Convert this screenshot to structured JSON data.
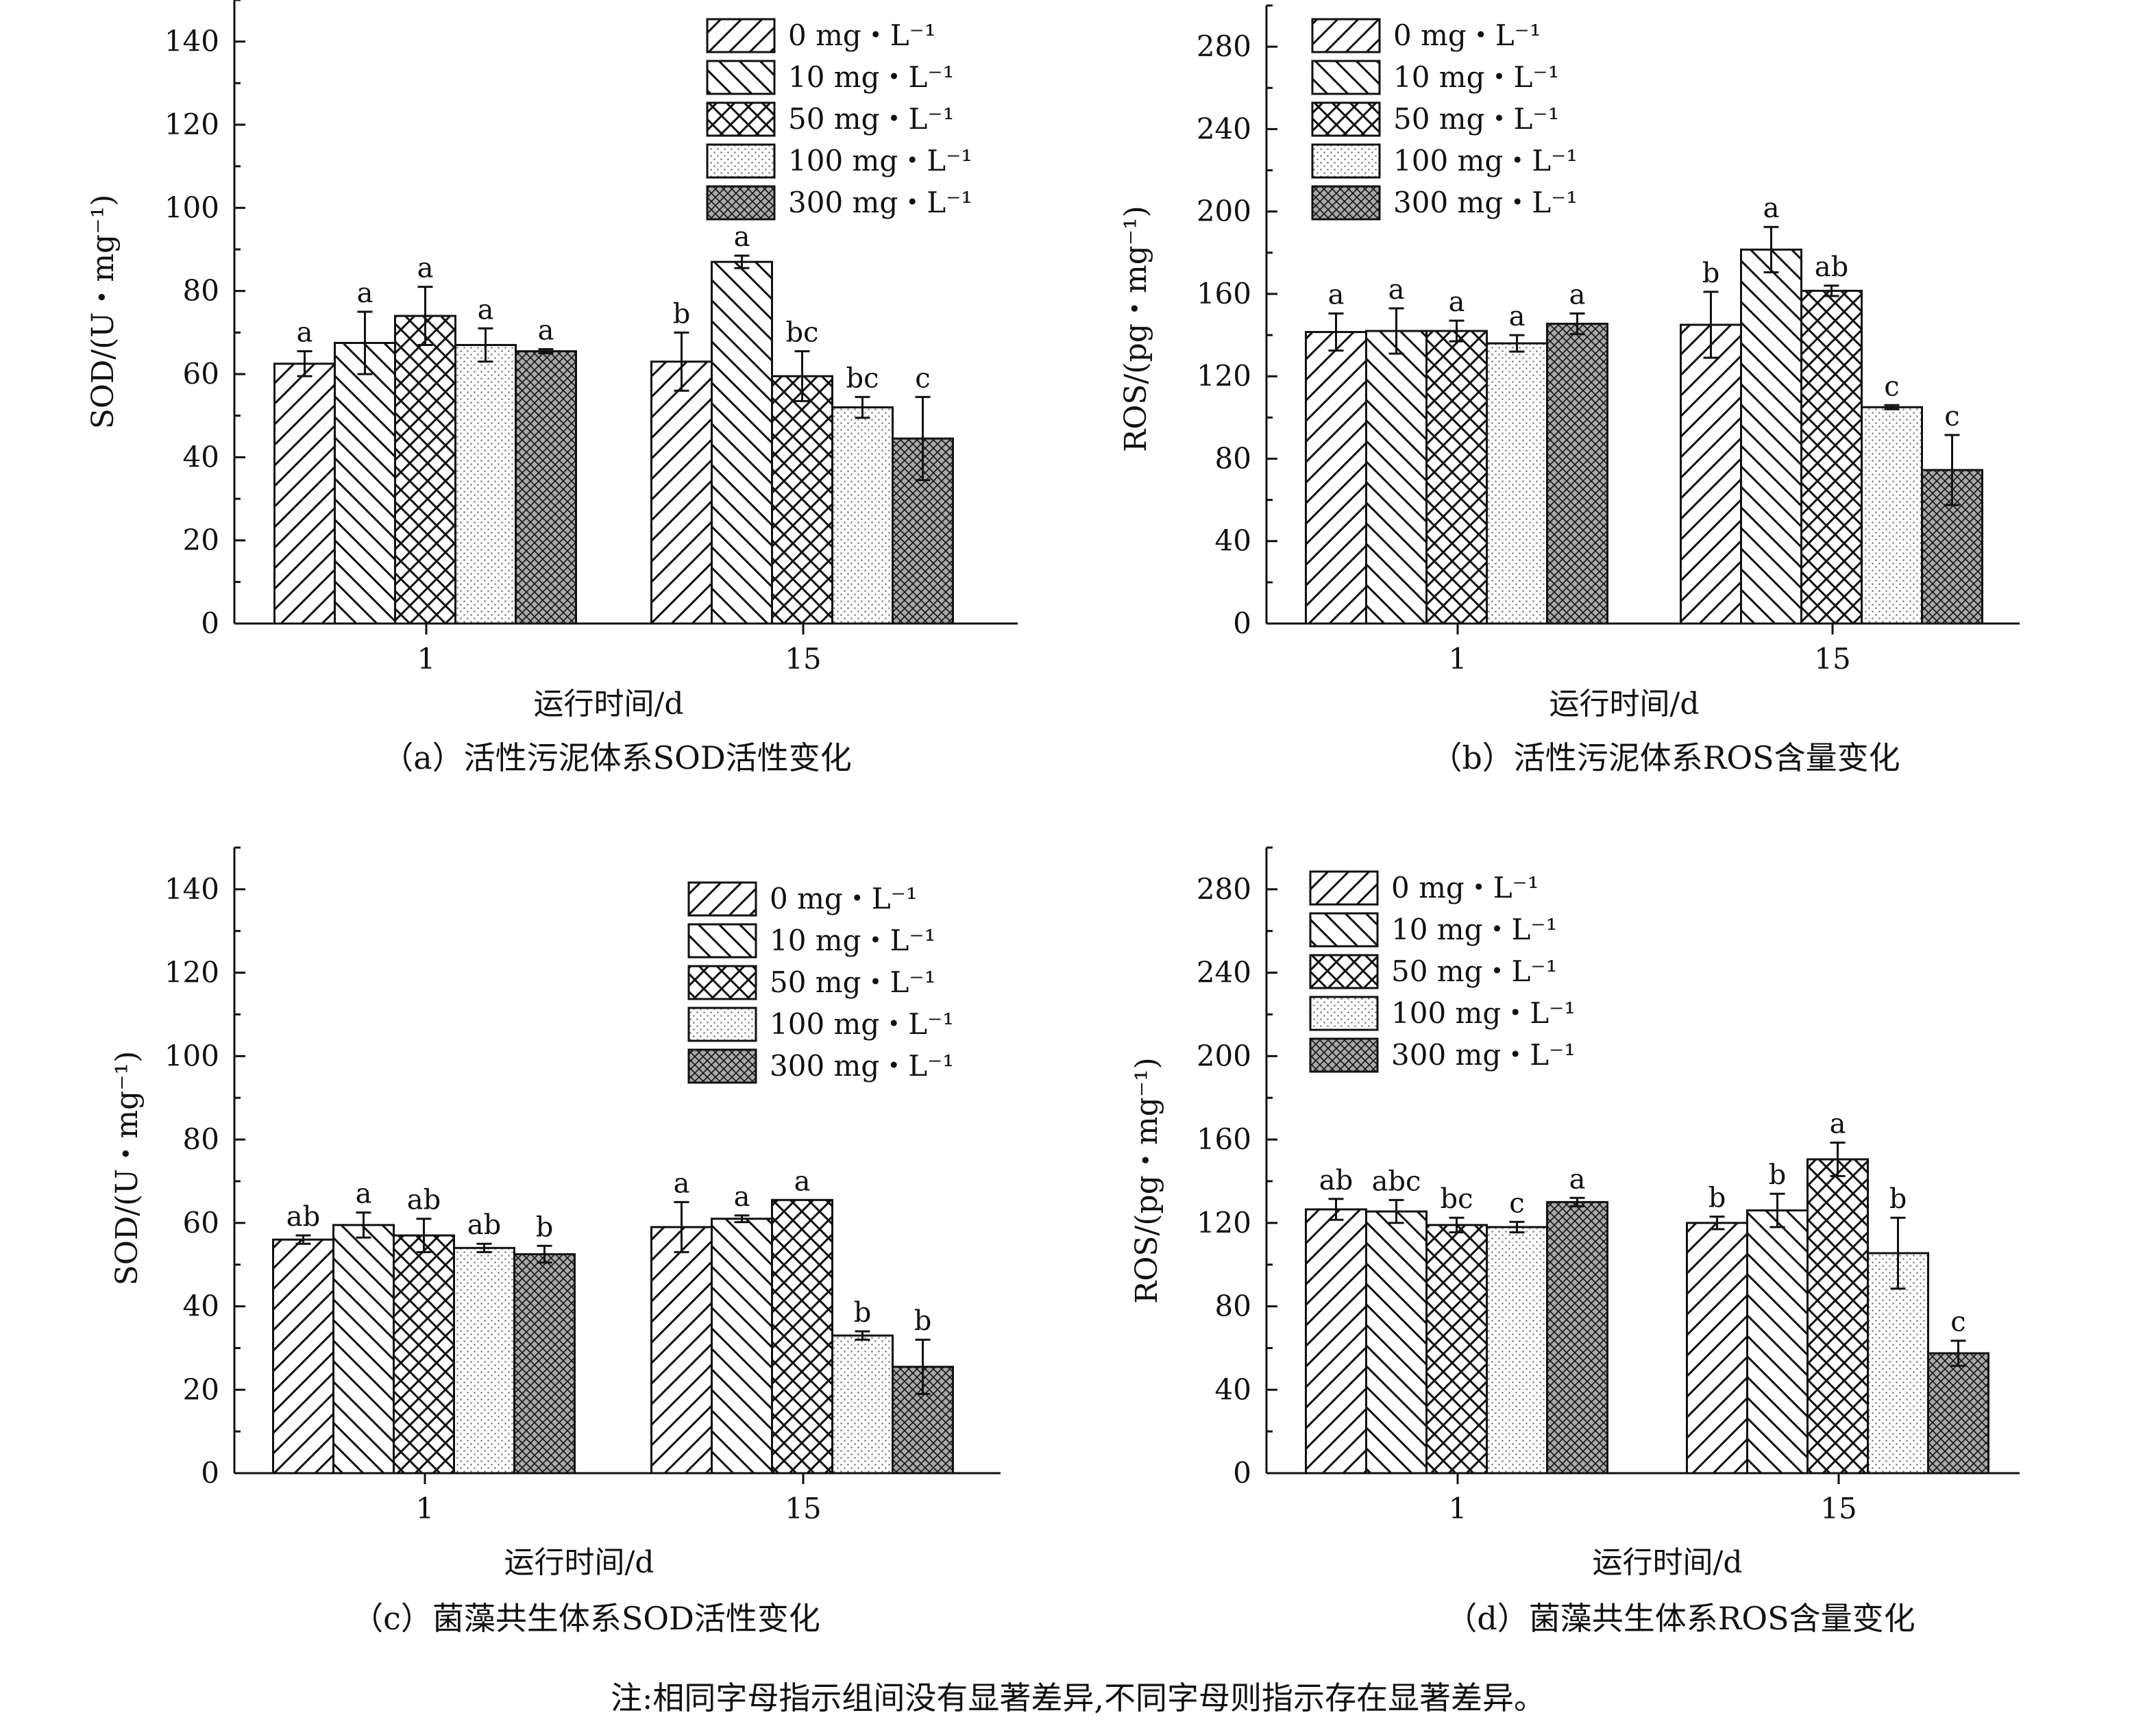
{
  "figure": {
    "note": "注:相同字母指示组间没有显著差异,不同字母则指示存在显著差异。"
  },
  "legend": {
    "items": [
      {
        "label": "0 mg・L⁻¹",
        "pattern": "diag-right"
      },
      {
        "label": "10 mg・L⁻¹",
        "pattern": "diag-left"
      },
      {
        "label": "50 mg・L⁻¹",
        "pattern": "crosshatch"
      },
      {
        "label": "100 mg・L⁻¹",
        "pattern": "dots"
      },
      {
        "label": "300 mg・L⁻¹",
        "pattern": "fine-crosshatch"
      }
    ]
  },
  "colors": {
    "ink": "#111111",
    "background": "#ffffff",
    "dots": "#7a7a7a",
    "fine_hatch_fill": "#a8a8a8"
  },
  "chart_data": [
    {
      "id": "a",
      "type": "bar",
      "caption": "（a）活性污泥体系SOD活性变化",
      "xlabel": "运行时间/d",
      "ylabel": "SOD/(U・mg⁻¹)",
      "categories": [
        "1",
        "15"
      ],
      "ylim": [
        0,
        150
      ],
      "yticks": [
        "0",
        "20",
        "40",
        "60",
        "80",
        "100",
        "120",
        "140"
      ],
      "grid": false,
      "legend_position": "top-right",
      "series": [
        {
          "name": "0 mg・L⁻¹",
          "values": [
            62.5,
            63
          ],
          "errors": [
            3,
            7
          ],
          "labels": [
            "a",
            "b"
          ]
        },
        {
          "name": "10 mg・L⁻¹",
          "values": [
            67.5,
            87
          ],
          "errors": [
            7.5,
            1.5
          ],
          "labels": [
            "a",
            "a"
          ]
        },
        {
          "name": "50 mg・L⁻¹",
          "values": [
            74,
            59.5
          ],
          "errors": [
            7,
            6
          ],
          "labels": [
            "a",
            "bc"
          ]
        },
        {
          "name": "100 mg・L⁻¹",
          "values": [
            67,
            52
          ],
          "errors": [
            4,
            2.5
          ],
          "labels": [
            "a",
            "bc"
          ]
        },
        {
          "name": "300 mg・L⁻¹",
          "values": [
            65.5,
            44.5
          ],
          "errors": [
            0.5,
            10
          ],
          "labels": [
            "a",
            "c"
          ]
        }
      ]
    },
    {
      "id": "b",
      "type": "bar",
      "caption": "（b）活性污泥体系ROS含量变化",
      "xlabel": "运行时间/d",
      "ylabel": "ROS/(pg・mg⁻¹)",
      "categories": [
        "1",
        "15"
      ],
      "ylim": [
        0,
        300
      ],
      "yticks": [
        "0",
        "40",
        "80",
        "120",
        "160",
        "200",
        "240",
        "280"
      ],
      "grid": false,
      "legend_position": "top-right",
      "series": [
        {
          "name": "0 mg・L⁻¹",
          "values": [
            141.5,
            145
          ],
          "errors": [
            9,
            16
          ],
          "labels": [
            "a",
            "b"
          ]
        },
        {
          "name": "10 mg・L⁻¹",
          "values": [
            142,
            181.5
          ],
          "errors": [
            11,
            11
          ],
          "labels": [
            "a",
            "a"
          ]
        },
        {
          "name": "50 mg・L⁻¹",
          "values": [
            142,
            161.5
          ],
          "errors": [
            5,
            2.5
          ],
          "labels": [
            "a",
            "ab"
          ]
        },
        {
          "name": "100 mg・L⁻¹",
          "values": [
            136,
            105
          ],
          "errors": [
            4,
            1
          ],
          "labels": [
            "a",
            "c"
          ]
        },
        {
          "name": "300 mg・L⁻¹",
          "values": [
            145.5,
            74.5
          ],
          "errors": [
            5,
            17
          ],
          "labels": [
            "a",
            "c"
          ]
        }
      ]
    },
    {
      "id": "c",
      "type": "bar",
      "caption": "（c）菌藻共生体系SOD活性变化",
      "xlabel": "运行时间/d",
      "ylabel": "SOD/(U・mg⁻¹)",
      "categories": [
        "1",
        "15"
      ],
      "ylim": [
        0,
        150
      ],
      "yticks": [
        "0",
        "20",
        "40",
        "60",
        "80",
        "100",
        "120",
        "140"
      ],
      "grid": false,
      "legend_position": "top-right",
      "series": [
        {
          "name": "0 mg・L⁻¹",
          "values": [
            56,
            59
          ],
          "errors": [
            1,
            6
          ],
          "labels": [
            "ab",
            "a"
          ]
        },
        {
          "name": "10 mg・L⁻¹",
          "values": [
            59.5,
            61
          ],
          "errors": [
            3,
            0.8
          ],
          "labels": [
            "a",
            "a"
          ]
        },
        {
          "name": "50 mg・L⁻¹",
          "values": [
            57,
            65.5
          ],
          "errors": [
            4,
            0
          ],
          "labels": [
            "ab",
            "a"
          ]
        },
        {
          "name": "100 mg・L⁻¹",
          "values": [
            54,
            33
          ],
          "errors": [
            1,
            1
          ],
          "labels": [
            "ab",
            "b"
          ]
        },
        {
          "name": "300 mg・L⁻¹",
          "values": [
            52.5,
            25.5
          ],
          "errors": [
            2,
            6.5
          ],
          "labels": [
            "b",
            "b"
          ]
        }
      ]
    },
    {
      "id": "d",
      "type": "bar",
      "caption": "（d）菌藻共生体系ROS含量变化",
      "xlabel": "运行时间/d",
      "ylabel": "ROS/(pg・mg⁻¹)",
      "categories": [
        "1",
        "15"
      ],
      "ylim": [
        0,
        300
      ],
      "yticks": [
        "0",
        "40",
        "80",
        "120",
        "160",
        "200",
        "240",
        "280"
      ],
      "grid": false,
      "legend_position": "top-right",
      "series": [
        {
          "name": "0 mg・L⁻¹",
          "values": [
            126.5,
            120
          ],
          "errors": [
            5,
            3
          ],
          "labels": [
            "ab",
            "b"
          ]
        },
        {
          "name": "10 mg・L⁻¹",
          "values": [
            125.5,
            126
          ],
          "errors": [
            5.5,
            8
          ],
          "labels": [
            "abc",
            "b"
          ]
        },
        {
          "name": "50 mg・L⁻¹",
          "values": [
            119,
            150.5
          ],
          "errors": [
            3.5,
            8
          ],
          "labels": [
            "bc",
            "a"
          ]
        },
        {
          "name": "100 mg・L⁻¹",
          "values": [
            118,
            105.5
          ],
          "errors": [
            2.5,
            17
          ],
          "labels": [
            "c",
            "b"
          ]
        },
        {
          "name": "300 mg・L⁻¹",
          "values": [
            130,
            57.5
          ],
          "errors": [
            2,
            6
          ],
          "labels": [
            "a",
            "c"
          ]
        }
      ]
    }
  ]
}
